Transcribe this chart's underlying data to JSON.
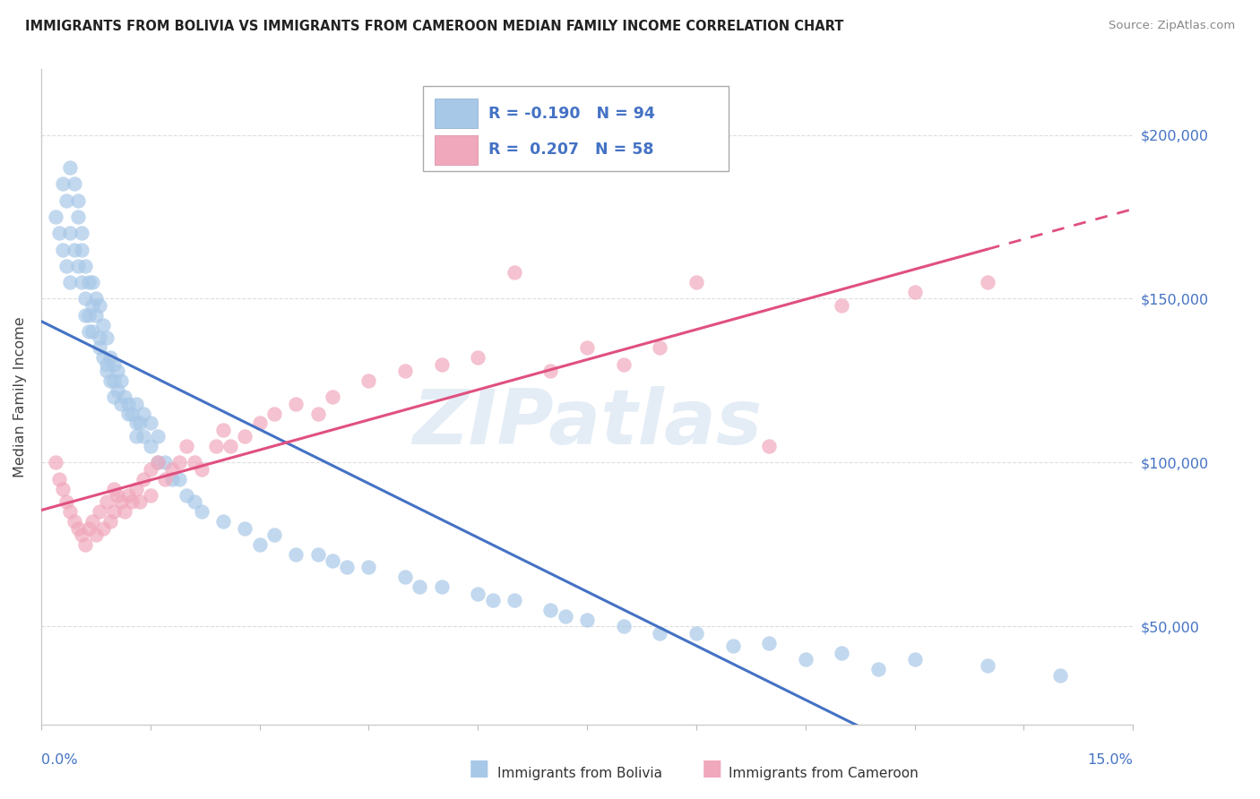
{
  "title": "IMMIGRANTS FROM BOLIVIA VS IMMIGRANTS FROM CAMEROON MEDIAN FAMILY INCOME CORRELATION CHART",
  "source": "Source: ZipAtlas.com",
  "ylabel": "Median Family Income",
  "xlim": [
    0.0,
    15.0
  ],
  "ylim": [
    20000,
    220000
  ],
  "yticks": [
    50000,
    100000,
    150000,
    200000
  ],
  "ytick_labels": [
    "$50,000",
    "$100,000",
    "$150,000",
    "$200,000"
  ],
  "bolivia_color": "#a8c8e8",
  "cameroon_color": "#f0a8bc",
  "bolivia_line_color": "#4472C4",
  "cameroon_line_color": "#E05080",
  "bolivia_R": -0.19,
  "bolivia_N": 94,
  "cameroon_R": 0.207,
  "cameroon_N": 58,
  "watermark": "ZIPatlas",
  "legend_label1": "R = -0.190   N = 94",
  "legend_label2": "R =  0.207   N = 58",
  "bolivia_x": [
    0.2,
    0.25,
    0.3,
    0.3,
    0.35,
    0.35,
    0.4,
    0.4,
    0.4,
    0.45,
    0.45,
    0.5,
    0.5,
    0.5,
    0.55,
    0.55,
    0.55,
    0.6,
    0.6,
    0.6,
    0.65,
    0.65,
    0.65,
    0.7,
    0.7,
    0.7,
    0.75,
    0.75,
    0.8,
    0.8,
    0.8,
    0.85,
    0.85,
    0.9,
    0.9,
    0.9,
    0.95,
    0.95,
    1.0,
    1.0,
    1.0,
    1.05,
    1.05,
    1.1,
    1.1,
    1.15,
    1.2,
    1.2,
    1.25,
    1.3,
    1.3,
    1.3,
    1.35,
    1.4,
    1.4,
    1.5,
    1.5,
    1.6,
    1.6,
    1.7,
    1.8,
    1.9,
    2.0,
    2.1,
    2.2,
    2.5,
    2.8,
    3.0,
    3.5,
    4.0,
    4.5,
    5.0,
    5.5,
    6.0,
    6.5,
    7.0,
    7.5,
    8.0,
    9.0,
    10.0,
    11.0,
    12.0,
    13.0,
    14.0,
    3.2,
    3.8,
    4.2,
    5.2,
    6.2,
    7.2,
    8.5,
    9.5,
    10.5,
    11.5
  ],
  "bolivia_y": [
    175000,
    170000,
    185000,
    165000,
    180000,
    160000,
    190000,
    170000,
    155000,
    185000,
    165000,
    180000,
    160000,
    175000,
    170000,
    155000,
    165000,
    160000,
    150000,
    145000,
    155000,
    145000,
    140000,
    155000,
    148000,
    140000,
    150000,
    145000,
    148000,
    138000,
    135000,
    142000,
    132000,
    138000,
    130000,
    128000,
    132000,
    125000,
    130000,
    125000,
    120000,
    128000,
    122000,
    125000,
    118000,
    120000,
    118000,
    115000,
    115000,
    112000,
    118000,
    108000,
    112000,
    115000,
    108000,
    105000,
    112000,
    108000,
    100000,
    100000,
    95000,
    95000,
    90000,
    88000,
    85000,
    82000,
    80000,
    75000,
    72000,
    70000,
    68000,
    65000,
    62000,
    60000,
    58000,
    55000,
    52000,
    50000,
    48000,
    45000,
    42000,
    40000,
    38000,
    35000,
    78000,
    72000,
    68000,
    62000,
    58000,
    53000,
    48000,
    44000,
    40000,
    37000
  ],
  "cameroon_x": [
    0.2,
    0.25,
    0.3,
    0.35,
    0.4,
    0.45,
    0.5,
    0.55,
    0.6,
    0.65,
    0.7,
    0.75,
    0.8,
    0.85,
    0.9,
    0.95,
    1.0,
    1.0,
    1.05,
    1.1,
    1.15,
    1.2,
    1.25,
    1.3,
    1.35,
    1.4,
    1.5,
    1.5,
    1.6,
    1.7,
    1.8,
    1.9,
    2.0,
    2.1,
    2.2,
    2.4,
    2.5,
    2.6,
    2.8,
    3.0,
    3.2,
    3.5,
    3.8,
    4.0,
    4.5,
    5.0,
    5.5,
    6.0,
    6.5,
    7.0,
    7.5,
    8.0,
    8.5,
    9.0,
    10.0,
    11.0,
    12.0,
    13.0
  ],
  "cameroon_y": [
    100000,
    95000,
    92000,
    88000,
    85000,
    82000,
    80000,
    78000,
    75000,
    80000,
    82000,
    78000,
    85000,
    80000,
    88000,
    82000,
    85000,
    92000,
    90000,
    88000,
    85000,
    90000,
    88000,
    92000,
    88000,
    95000,
    98000,
    90000,
    100000,
    95000,
    98000,
    100000,
    105000,
    100000,
    98000,
    105000,
    110000,
    105000,
    108000,
    112000,
    115000,
    118000,
    115000,
    120000,
    125000,
    128000,
    130000,
    132000,
    158000,
    128000,
    135000,
    130000,
    135000,
    155000,
    105000,
    148000,
    152000,
    155000
  ]
}
